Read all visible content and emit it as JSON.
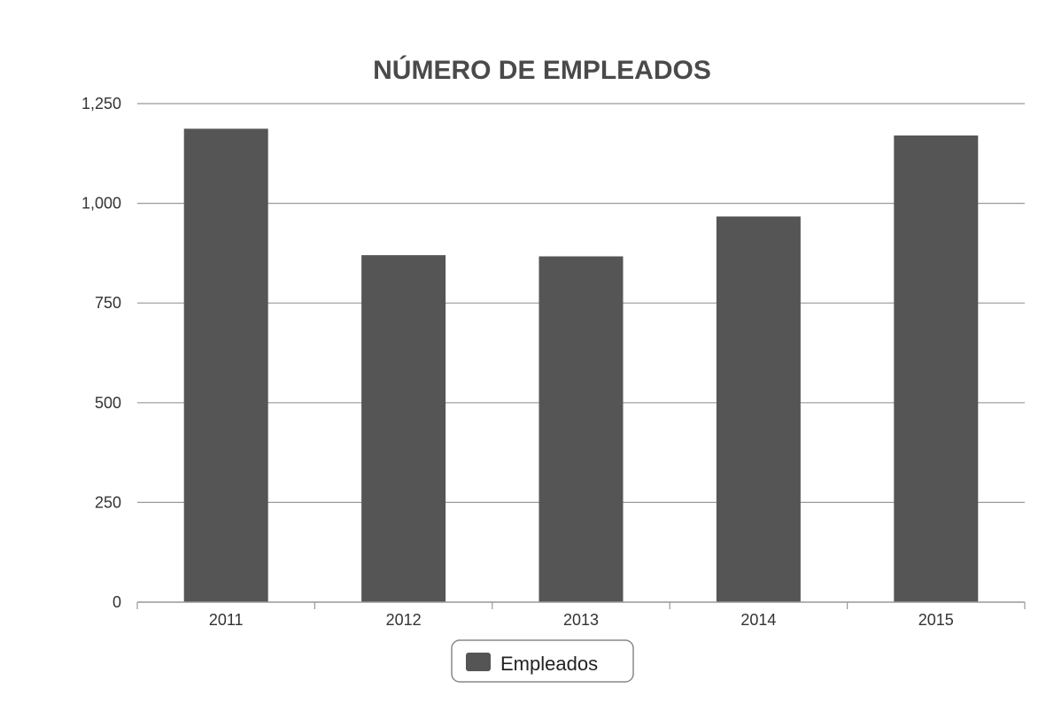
{
  "chart_data": {
    "type": "bar",
    "title": "NÚMERO DE EMPLEADOS",
    "xlabel": "",
    "ylabel": "",
    "categories": [
      "2011",
      "2012",
      "2013",
      "2014",
      "2015"
    ],
    "series": [
      {
        "name": "Empleados",
        "values": [
          1187,
          870,
          867,
          967,
          1170
        ]
      }
    ],
    "ylim": [
      0,
      1250
    ],
    "yticks": [
      0,
      250,
      500,
      750,
      1000,
      1250
    ],
    "ytick_labels": [
      "0",
      "250",
      "500",
      "750",
      "1,000",
      "1,250"
    ],
    "grid": true,
    "legend_position": "bottom-center",
    "colors": {
      "bar": "#555555",
      "grid": "#999999",
      "axis": "#999999",
      "title": "#4a4a4a",
      "text": "#333333"
    }
  }
}
